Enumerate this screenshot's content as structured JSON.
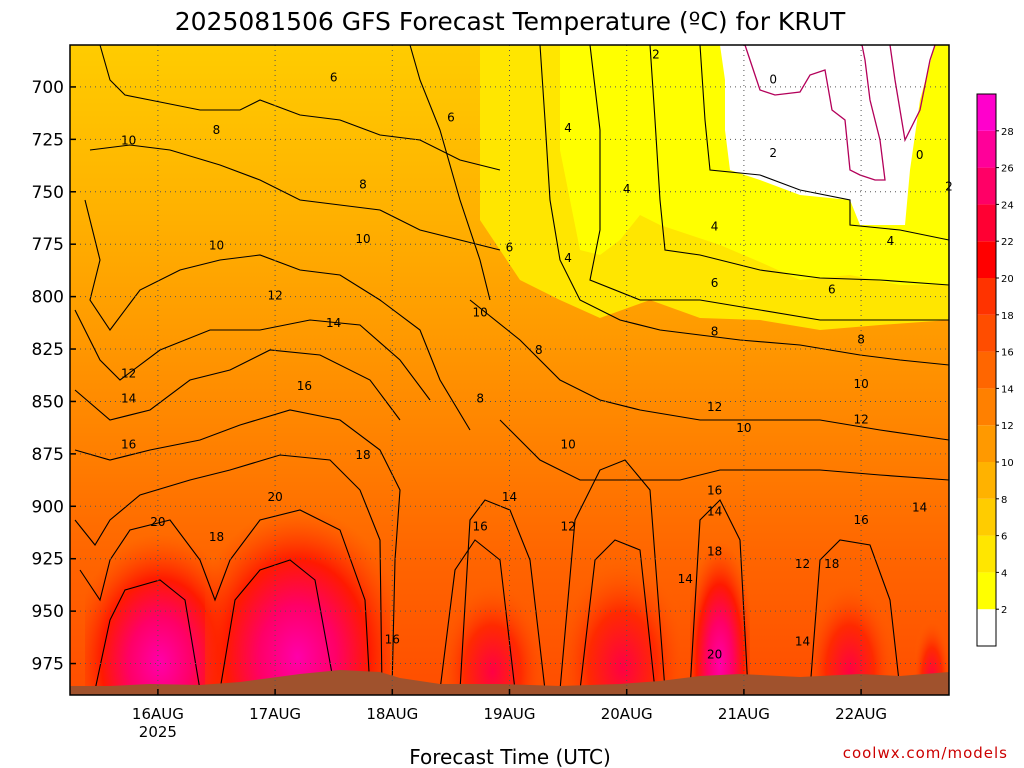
{
  "title": "2025081506 GFS Forecast Temperature (ºC) for KRUT",
  "credit": "coolwx.com/models",
  "chart_data": {
    "type": "heatmap",
    "title": "2025081506 GFS Forecast Temperature (ºC) for KRUT",
    "xlabel": "Forecast Time (UTC)",
    "ylabel": "",
    "x_ticks": [
      "16AUG",
      "17AUG",
      "18AUG",
      "19AUG",
      "20AUG",
      "21AUG",
      "22AUG"
    ],
    "x_tick_sublabel": "2025",
    "x_range": [
      "2025-08-15T06",
      "2025-08-22T18"
    ],
    "y_ticks": [
      700,
      725,
      750,
      775,
      800,
      825,
      850,
      875,
      900,
      925,
      950,
      975
    ],
    "y_range_hPa": [
      680,
      990
    ],
    "y_reversed": true,
    "grid": true,
    "colorbar": {
      "levels": [
        2,
        4,
        6,
        8,
        10,
        12,
        14,
        16,
        18,
        20,
        22,
        24,
        26,
        28
      ],
      "colors": [
        "#ffffff",
        "#ffff00",
        "#ffe600",
        "#ffcc00",
        "#ffb200",
        "#ff9900",
        "#ff8000",
        "#ff6600",
        "#ff4d00",
        "#ff3300",
        "#ff0000",
        "#ff0033",
        "#ff0066",
        "#ff0099",
        "#ff00cc"
      ]
    },
    "contour_labels": [
      {
        "time": "2025-08-15T18",
        "p": 727,
        "v": "10"
      },
      {
        "time": "2025-08-16T12",
        "p": 722,
        "v": "8"
      },
      {
        "time": "2025-08-17T12",
        "p": 697,
        "v": "6"
      },
      {
        "time": "2025-08-18T12",
        "p": 716,
        "v": "6"
      },
      {
        "time": "2025-08-19T12",
        "p": 721,
        "v": "4"
      },
      {
        "time": "2025-08-20T06",
        "p": 686,
        "v": "2"
      },
      {
        "time": "2025-08-21T06",
        "p": 698,
        "v": "0"
      },
      {
        "time": "2025-08-22T12",
        "p": 734,
        "v": "0"
      },
      {
        "time": "2025-08-21T06",
        "p": 733,
        "v": "2"
      },
      {
        "time": "2025-08-22T18",
        "p": 749,
        "v": "2"
      },
      {
        "time": "2025-08-20T00",
        "p": 750,
        "v": "4"
      },
      {
        "time": "2025-08-20T18",
        "p": 768,
        "v": "4"
      },
      {
        "time": "2025-08-22T06",
        "p": 775,
        "v": "4"
      },
      {
        "time": "2025-08-19T12",
        "p": 783,
        "v": "4"
      },
      {
        "time": "2025-08-17T18",
        "p": 748,
        "v": "8"
      },
      {
        "time": "2025-08-16T12",
        "p": 777,
        "v": "10"
      },
      {
        "time": "2025-08-17T18",
        "p": 774,
        "v": "10"
      },
      {
        "time": "2025-08-17T00",
        "p": 801,
        "v": "12"
      },
      {
        "time": "2025-08-19T00",
        "p": 778,
        "v": "6"
      },
      {
        "time": "2025-08-20T18",
        "p": 795,
        "v": "6"
      },
      {
        "time": "2025-08-21T18",
        "p": 798,
        "v": "6"
      },
      {
        "time": "2025-08-18T18",
        "p": 809,
        "v": "10"
      },
      {
        "time": "2025-08-17T12",
        "p": 814,
        "v": "14"
      },
      {
        "time": "2025-08-20T18",
        "p": 818,
        "v": "8"
      },
      {
        "time": "2025-08-19T06",
        "p": 827,
        "v": "8"
      },
      {
        "time": "2025-08-22T00",
        "p": 822,
        "v": "8"
      },
      {
        "time": "2025-08-15T18",
        "p": 838,
        "v": "12"
      },
      {
        "time": "2025-08-17T06",
        "p": 844,
        "v": "16"
      },
      {
        "time": "2025-08-22T00",
        "p": 843,
        "v": "10"
      },
      {
        "time": "2025-08-15T18",
        "p": 850,
        "v": "14"
      },
      {
        "time": "2025-08-18T18",
        "p": 850,
        "v": "8"
      },
      {
        "time": "2025-08-20T18",
        "p": 854,
        "v": "12"
      },
      {
        "time": "2025-08-21T00",
        "p": 864,
        "v": "10"
      },
      {
        "time": "2025-08-22T00",
        "p": 860,
        "v": "12"
      },
      {
        "time": "2025-08-15T18",
        "p": 872,
        "v": "16"
      },
      {
        "time": "2025-08-19T12",
        "p": 872,
        "v": "10"
      },
      {
        "time": "2025-08-17T18",
        "p": 877,
        "v": "18"
      },
      {
        "time": "2025-08-20T18",
        "p": 894,
        "v": "16"
      },
      {
        "time": "2025-08-17T00",
        "p": 897,
        "v": "20"
      },
      {
        "time": "2025-08-19T00",
        "p": 897,
        "v": "14"
      },
      {
        "time": "2025-08-22T12",
        "p": 902,
        "v": "14"
      },
      {
        "time": "2025-08-20T18",
        "p": 904,
        "v": "14"
      },
      {
        "time": "2025-08-16T00",
        "p": 909,
        "v": "20"
      },
      {
        "time": "2025-08-18T18",
        "p": 911,
        "v": "16"
      },
      {
        "time": "2025-08-19T12",
        "p": 911,
        "v": "12"
      },
      {
        "time": "2025-08-22T00",
        "p": 908,
        "v": "16"
      },
      {
        "time": "2025-08-16T12",
        "p": 916,
        "v": "18"
      },
      {
        "time": "2025-08-20T18",
        "p": 923,
        "v": "18"
      },
      {
        "time": "2025-08-21T12",
        "p": 929,
        "v": "12"
      },
      {
        "time": "2025-08-21T18",
        "p": 929,
        "v": "18"
      },
      {
        "time": "2025-08-20T12",
        "p": 936,
        "v": "14"
      },
      {
        "time": "2025-08-18T00",
        "p": 965,
        "v": "16"
      },
      {
        "time": "2025-08-21T12",
        "p": 966,
        "v": "14"
      },
      {
        "time": "2025-08-20T18",
        "p": 972,
        "v": "20"
      }
    ]
  }
}
